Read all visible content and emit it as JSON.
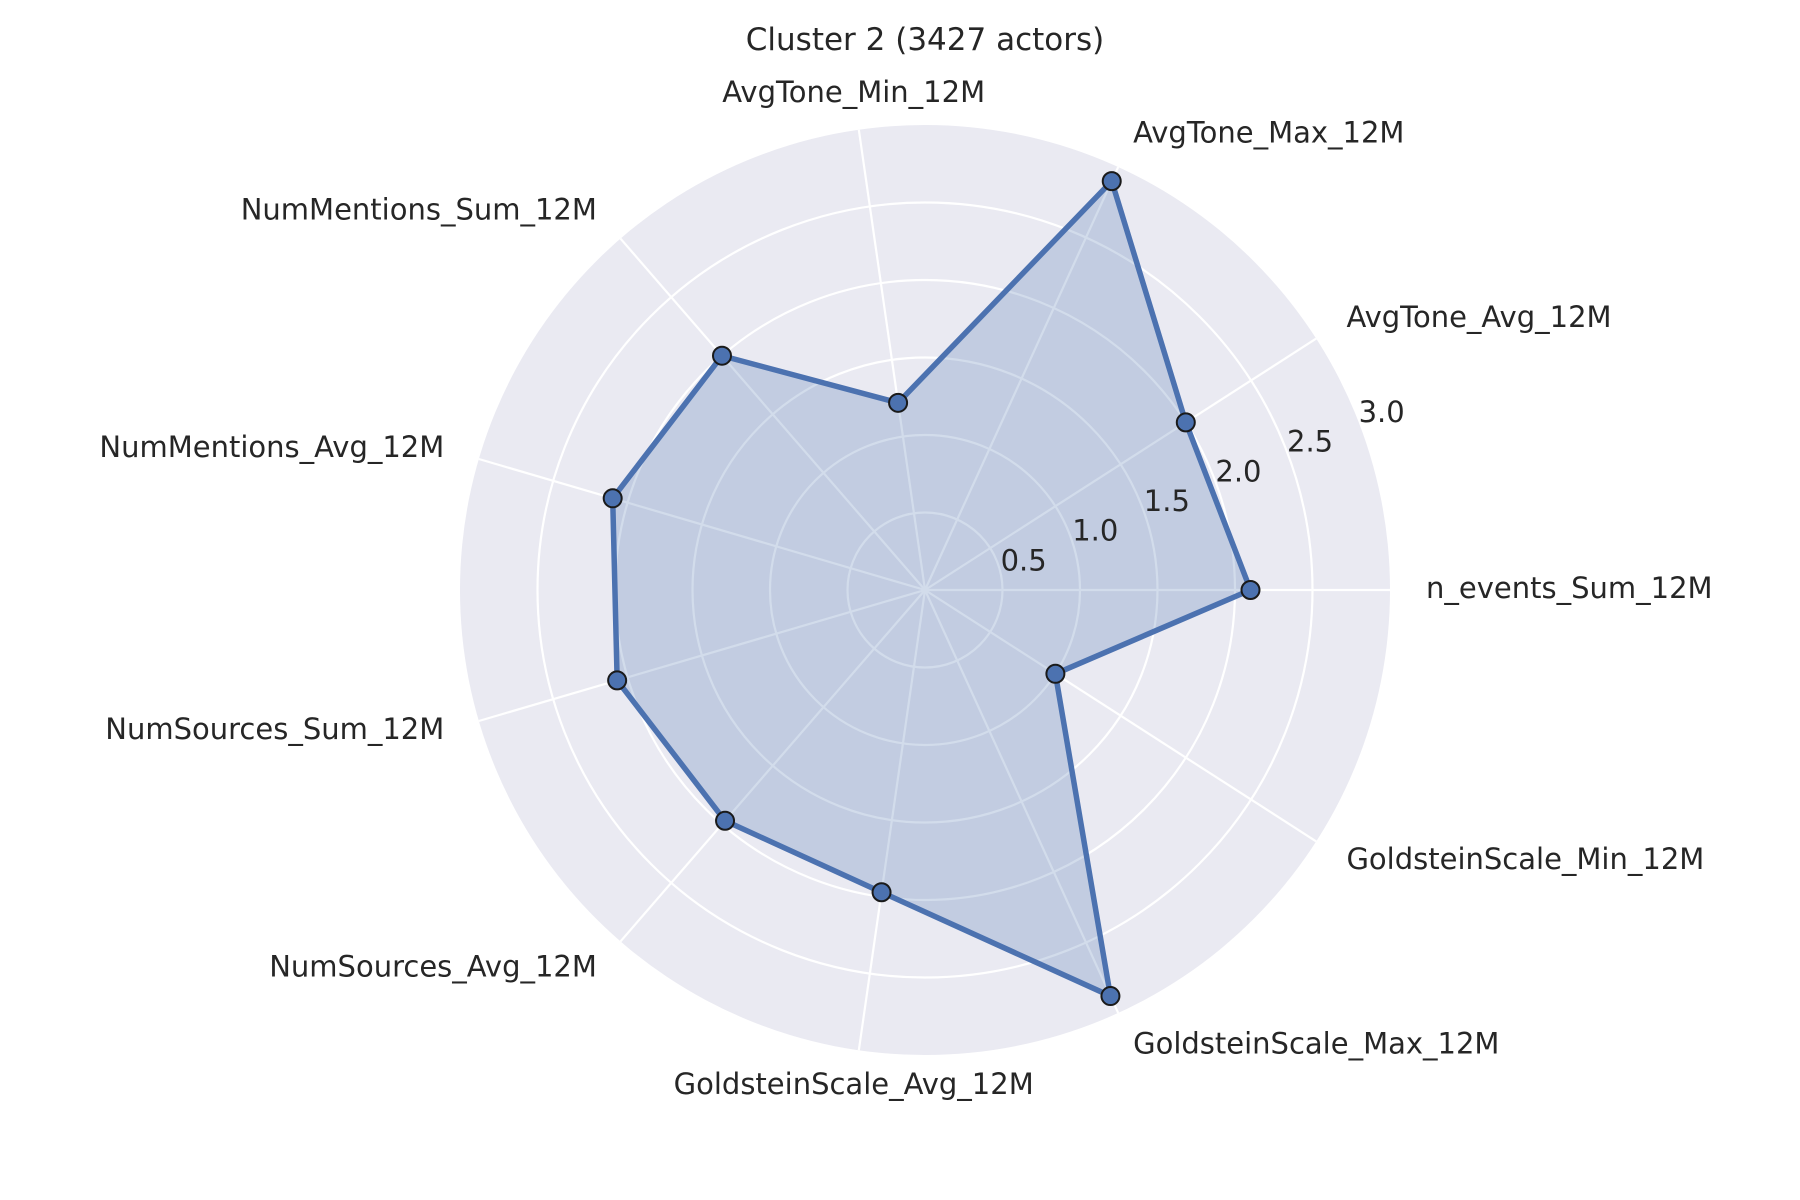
{
  "chart_data": {
    "type": "radar",
    "title": "Cluster 2 (3427 actors)",
    "categories": [
      "n_events_Sum_12M",
      "AvgTone_Avg_12M",
      "AvgTone_Max_12M",
      "AvgTone_Min_12M",
      "NumMentions_Sum_12M",
      "NumMentions_Avg_12M",
      "NumSources_Sum_12M",
      "NumSources_Avg_12M",
      "GoldsteinScale_Avg_12M",
      "GoldsteinScale_Max_12M",
      "GoldsteinScale_Min_12M"
    ],
    "series": [
      {
        "values": [
          2.1,
          2.0,
          2.9,
          1.22,
          2.0,
          2.1,
          2.07,
          1.97,
          1.97,
          2.88,
          1.0
        ]
      }
    ],
    "rlim": [
      0,
      3.0
    ],
    "rticks": [
      "0.5",
      "1.0",
      "1.5",
      "2.0",
      "2.5",
      "3.0"
    ],
    "rtick_values": [
      0.5,
      1.0,
      1.5,
      2.0,
      2.5,
      3.0
    ],
    "grid": true,
    "colors": {
      "plot_background": "#eaeaf2",
      "grid": "#ffffff",
      "line": "#4c72b0",
      "fill": "#4c72b0",
      "marker_edge": "#1a1a1a"
    }
  }
}
